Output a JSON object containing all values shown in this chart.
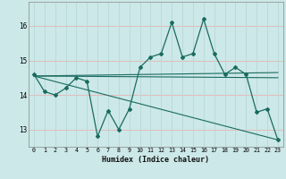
{
  "xlabel": "Humidex (Indice chaleur)",
  "bg_color": "#cce8e8",
  "line_color": "#1a6b60",
  "grid_h_color": "#e8b4b4",
  "grid_v_color": "#b8d8d8",
  "xlim": [
    -0.5,
    23.5
  ],
  "ylim": [
    12.5,
    16.7
  ],
  "yticks": [
    13,
    14,
    15,
    16
  ],
  "xticks": [
    0,
    1,
    2,
    3,
    4,
    5,
    6,
    7,
    8,
    9,
    10,
    11,
    12,
    13,
    14,
    15,
    16,
    17,
    18,
    19,
    20,
    21,
    22,
    23
  ],
  "main_series_x": [
    0,
    1,
    2,
    3,
    4,
    5,
    6,
    7,
    8,
    9,
    10,
    11,
    12,
    13,
    14,
    15,
    16,
    17,
    18,
    19,
    20,
    21,
    22,
    23
  ],
  "main_series_y": [
    14.6,
    14.1,
    14.0,
    14.2,
    14.5,
    14.4,
    12.8,
    13.55,
    13.0,
    13.6,
    14.8,
    15.1,
    15.2,
    16.1,
    15.1,
    15.2,
    16.2,
    15.2,
    14.6,
    14.8,
    14.6,
    13.5,
    13.6,
    12.7
  ],
  "trend1_x": [
    0,
    23
  ],
  "trend1_y": [
    14.55,
    14.65
  ],
  "trend2_x": [
    0,
    23
  ],
  "trend2_y": [
    14.55,
    14.5
  ],
  "trend3_x": [
    0,
    23
  ],
  "trend3_y": [
    14.55,
    12.7
  ]
}
